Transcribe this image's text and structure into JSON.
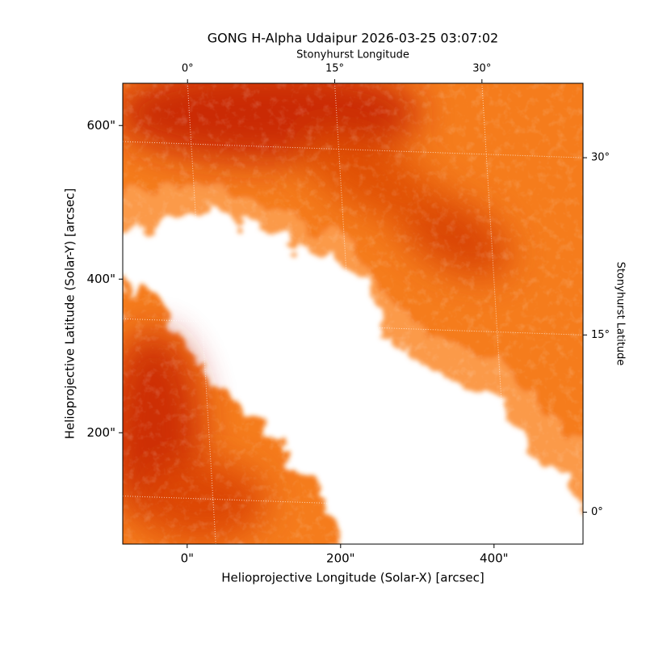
{
  "chart_data": {
    "type": "image",
    "title": "GONG H-Alpha Udaipur 2026-03-25 03:07:02",
    "xlabel": "Helioprojective Longitude (Solar-X) [arcsec]",
    "ylabel": "Helioprojective Latitude (Solar-Y) [arcsec]",
    "x2label": "Stonyhurst Longitude",
    "y2label": "Stonyhurst Latitude",
    "xlim": [
      -84,
      516
    ],
    "ylim": [
      55,
      655
    ],
    "xticks": [
      {
        "value": 0,
        "label": "0\""
      },
      {
        "value": 200,
        "label": "200\""
      },
      {
        "value": 400,
        "label": "400\""
      }
    ],
    "yticks": [
      {
        "value": 200,
        "label": "200\""
      },
      {
        "value": 400,
        "label": "400\""
      },
      {
        "value": 600,
        "label": "600\""
      }
    ],
    "x2lim": [
      -6.6,
      40.3
    ],
    "x2ticks": [
      {
        "value": 0,
        "label": "0°"
      },
      {
        "value": 15,
        "label": "15°"
      },
      {
        "value": 30,
        "label": "30°"
      }
    ],
    "y2lim": [
      -2.7,
      36.3
    ],
    "y2ticks": [
      {
        "value": 0,
        "label": "0°"
      },
      {
        "value": 15,
        "label": "15°"
      },
      {
        "value": 30,
        "label": "30°"
      }
    ],
    "grid": true
  }
}
